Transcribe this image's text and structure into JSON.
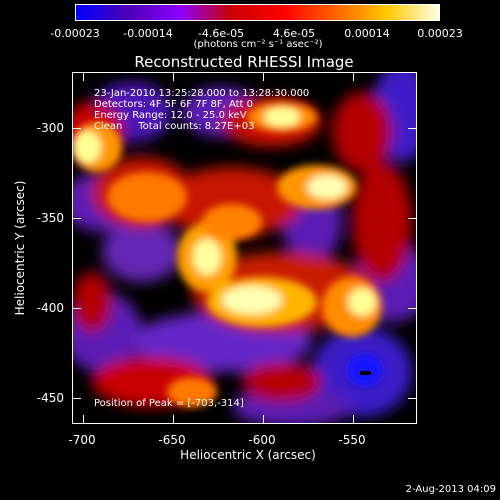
{
  "colorbar": {
    "colors": [
      "#0000ff",
      "#4b00b4",
      "#8c00ff",
      "#c80000",
      "#ff0000",
      "#ff6400",
      "#ffc800",
      "#ffffe6"
    ],
    "tick_labels": [
      "-0.00023",
      "-0.00014",
      "-4.6e-05",
      "4.6e-05",
      "0.00014",
      "0.00023"
    ],
    "units_text": "(photons cm⁻² s⁻¹ asec⁻²)"
  },
  "plot": {
    "title": "Reconstructed RHESSI Image",
    "info_lines": [
      "23-Jan-2010 13:25:28.000 to 13:28:30.000",
      "Detectors: 4F 5F 6F 7F 8F, Att 0",
      "Energy Range: 12.0 - 25.0 keV",
      "Clean     Total counts: 8.27E+03"
    ],
    "peak_text": "Position of Peak = [-703,-314]",
    "x_axis": {
      "title": "Heliocentric X (arcsec)",
      "range": [
        -702,
        -510
      ],
      "tick_labels": [
        "-700",
        "-650",
        "-600",
        "-550"
      ]
    },
    "y_axis": {
      "title": "Heliocentric Y (arcsec)",
      "range": [
        -463,
        -269
      ],
      "tick_labels": [
        "-300",
        "-350",
        "-400",
        "-450"
      ]
    }
  },
  "footer": {
    "date": "2-Aug-2013 04:09"
  }
}
